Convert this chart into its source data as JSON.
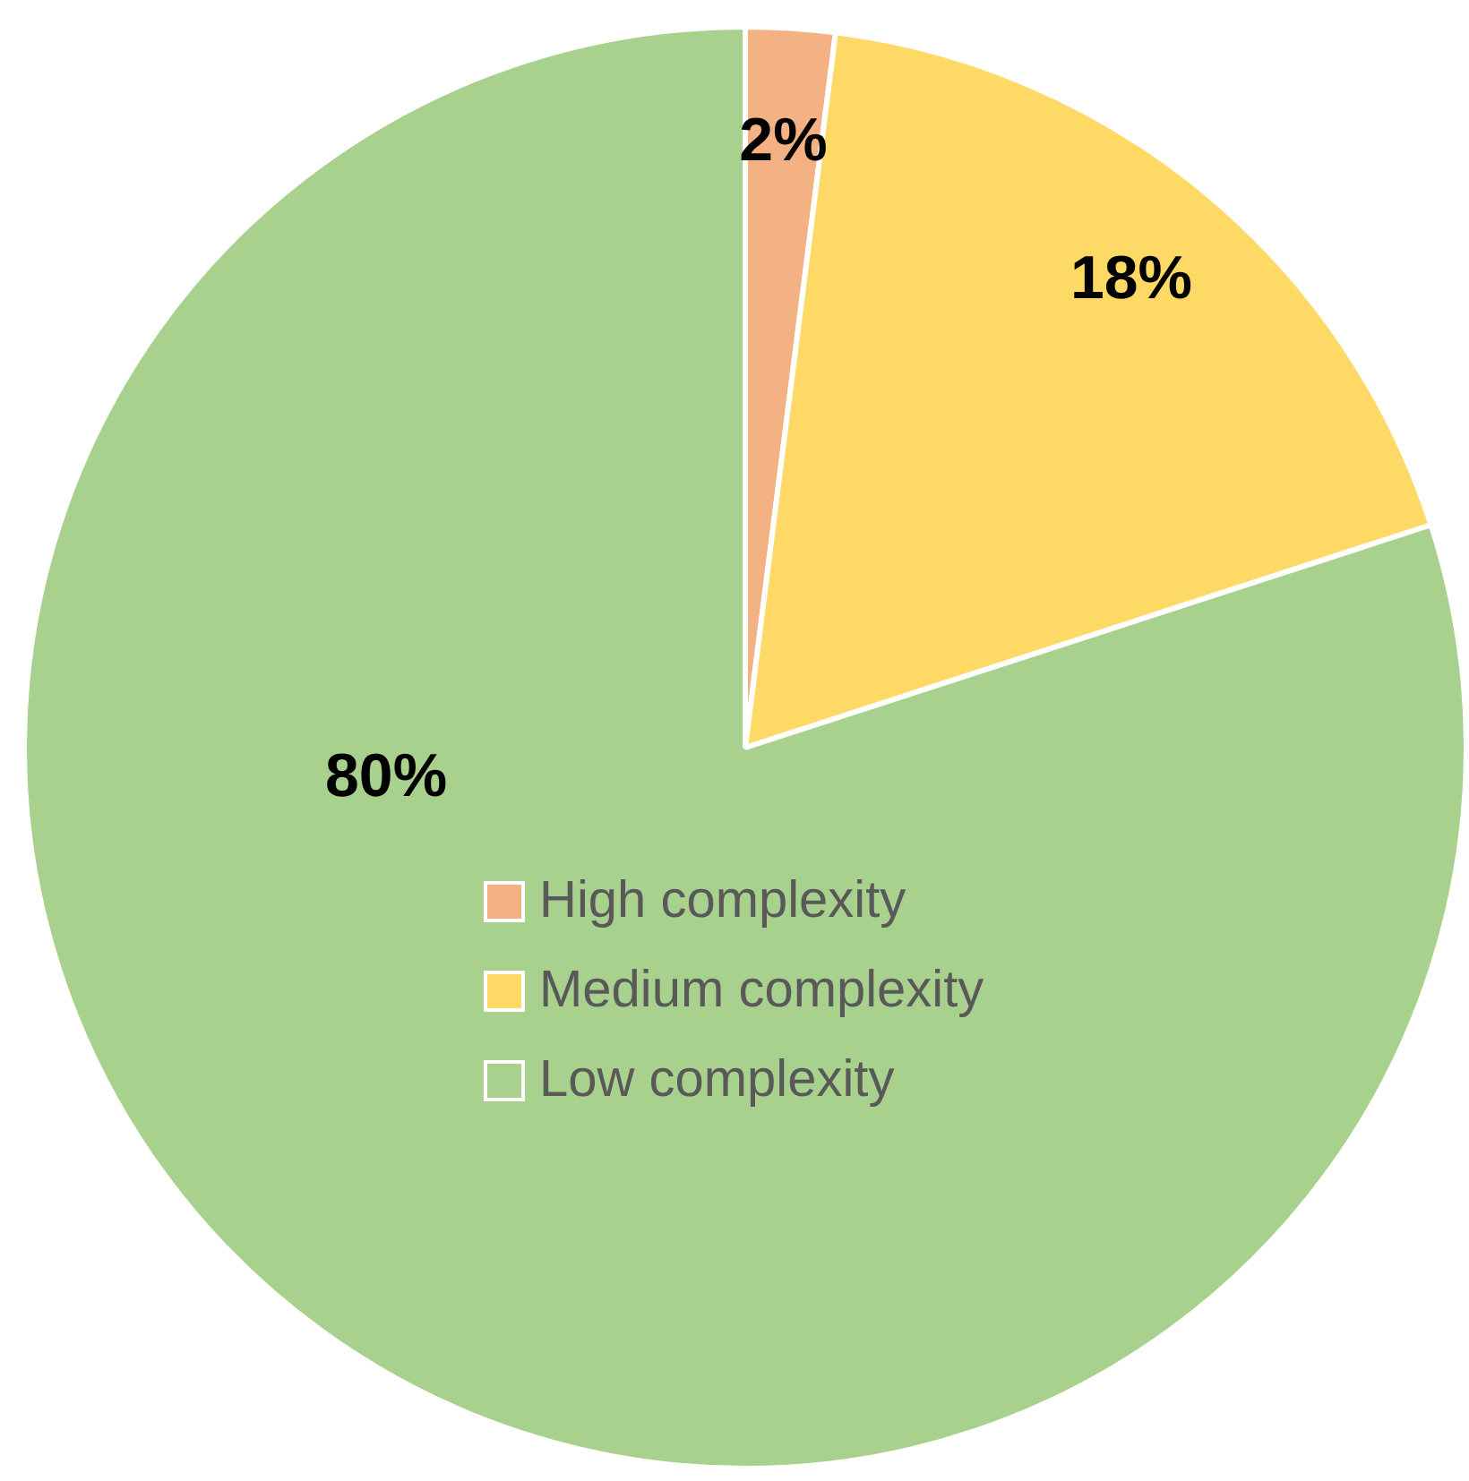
{
  "chart_data": {
    "type": "pie",
    "categories": [
      "High complexity",
      "Medium complexity",
      "Low complexity"
    ],
    "values": [
      2,
      18,
      80
    ],
    "colors": [
      "#f4b183",
      "#ffd966",
      "#a9d18e"
    ],
    "value_labels": [
      "2%",
      "18%",
      "80%"
    ],
    "legend": "center"
  }
}
